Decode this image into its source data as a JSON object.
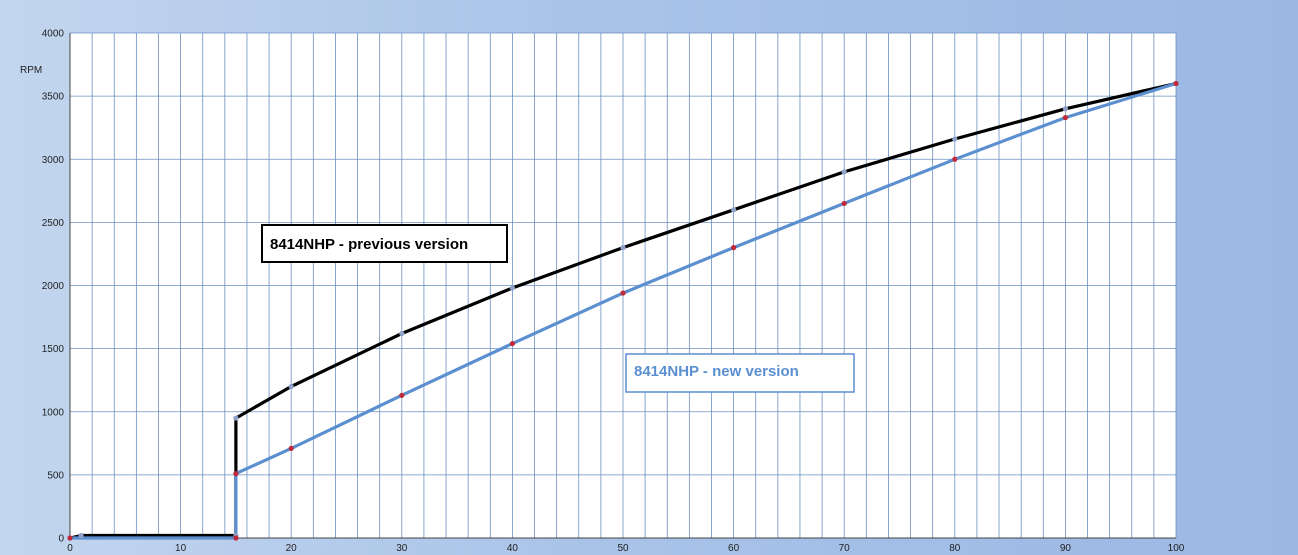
{
  "chart_data": {
    "type": "line",
    "title": "",
    "xlabel": "",
    "ylabel": "RPM",
    "xlim": [
      0,
      100
    ],
    "ylim": [
      0,
      4000
    ],
    "x_ticks": [
      0,
      10,
      20,
      30,
      40,
      50,
      60,
      70,
      80,
      90,
      100
    ],
    "y_ticks": [
      0,
      500,
      1000,
      1500,
      2000,
      2500,
      3000,
      3500,
      4000
    ],
    "x_minor_step": 2,
    "y_major_step": 500,
    "grid": true,
    "series": [
      {
        "name": "8414NHP - previous version",
        "color": "#000000",
        "marker_color": "#8fa3c8",
        "x": [
          0,
          1,
          15,
          15,
          20,
          30,
          40,
          50,
          60,
          70,
          80,
          90,
          100
        ],
        "y": [
          0,
          20,
          20,
          950,
          1200,
          1620,
          1980,
          2300,
          2600,
          2900,
          3160,
          3400,
          3600
        ]
      },
      {
        "name": "8414NHP - new version",
        "color": "#5b8fd0",
        "marker_color": "#c0293a",
        "x": [
          0,
          15,
          15,
          20,
          30,
          40,
          50,
          60,
          70,
          80,
          90,
          100
        ],
        "y": [
          0,
          0,
          510,
          710,
          1130,
          1540,
          1940,
          2300,
          2650,
          3000,
          3330,
          3600
        ]
      }
    ],
    "annotations": [
      {
        "text": "8414NHP - previous version",
        "style": "dark"
      },
      {
        "text": "8414NHP - new version",
        "style": "blue"
      }
    ]
  }
}
